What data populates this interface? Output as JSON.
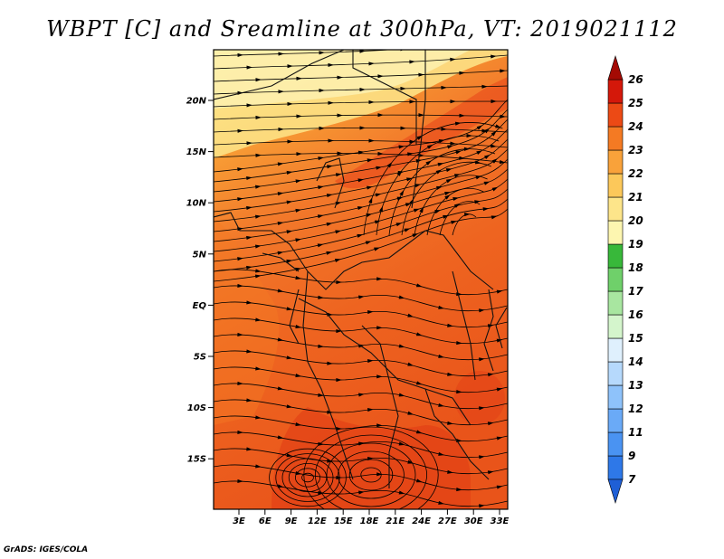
{
  "title": "WBPT [C] and Sreamline at 300hPa, VT: 2019021112",
  "credit": "GrADS: IGES/COLA",
  "lat_labels": [
    "20N",
    "15N",
    "10N",
    "5N",
    "EQ",
    "5S",
    "10S",
    "15S"
  ],
  "lon_labels": [
    "3E",
    "6E",
    "9E",
    "12E",
    "15E",
    "18E",
    "21E",
    "24E",
    "27E",
    "30E",
    "33E"
  ],
  "colorbar": {
    "levels": [
      "7",
      "9",
      "11",
      "12",
      "13",
      "14",
      "15",
      "16",
      "17",
      "18",
      "19",
      "20",
      "21",
      "22",
      "23",
      "24",
      "25",
      "26"
    ],
    "colors": [
      "#1f5fd6",
      "#2e78e8",
      "#4a93f2",
      "#6aaaf7",
      "#8ec2fa",
      "#b6d9fc",
      "#dff0fd",
      "#d4f5cc",
      "#a8e6a0",
      "#6fd06a",
      "#38b83a",
      "#fdf6b0",
      "#fde58a",
      "#fcc85a",
      "#f9a23a",
      "#f47a23",
      "#ec4a15",
      "#d4180a",
      "#a40a04"
    ]
  },
  "map": {
    "field": "WBPT",
    "units": "C",
    "level": "300hPa",
    "valid_time": "2019021112",
    "lat_range": [
      -20,
      24
    ],
    "lon_range": [
      0,
      35
    ],
    "streamlines": true
  }
}
